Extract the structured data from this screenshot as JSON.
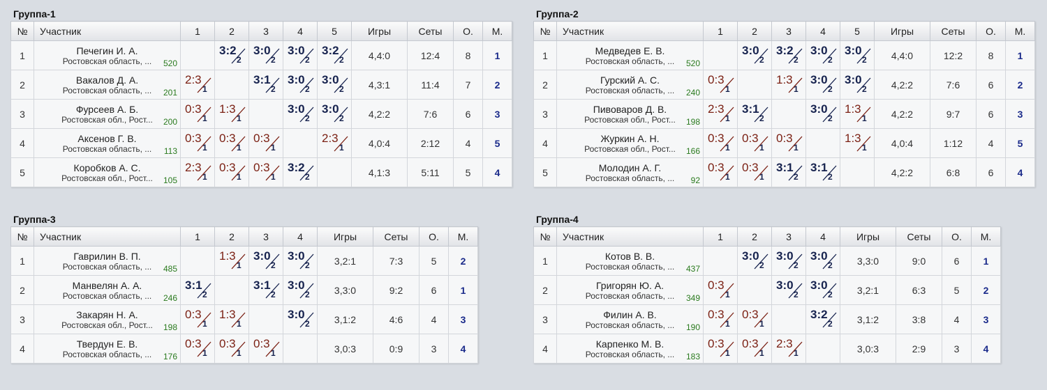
{
  "headers": {
    "num": "№",
    "name": "Участник",
    "games": "Игры",
    "sets": "Сеты",
    "points": "О.",
    "place": "М."
  },
  "groups": [
    {
      "title": "Группа-1",
      "players": [
        {
          "num": "1",
          "name": "Печегин И. А.",
          "region": "Ростовская область, ...",
          "rating": "520",
          "games": "4,4:0",
          "sets": "12:4",
          "points": "8",
          "place": "1",
          "results": [
            null,
            {
              "s": "3:2",
              "p": "2",
              "w": true
            },
            {
              "s": "3:0",
              "p": "2",
              "w": true
            },
            {
              "s": "3:0",
              "p": "2",
              "w": true
            },
            {
              "s": "3:2",
              "p": "2",
              "w": true
            }
          ]
        },
        {
          "num": "2",
          "name": "Вакалов Д. А.",
          "region": "Ростовская область, ...",
          "rating": "201",
          "games": "4,3:1",
          "sets": "11:4",
          "points": "7",
          "place": "2",
          "results": [
            {
              "s": "2:3",
              "p": "1",
              "w": false
            },
            null,
            {
              "s": "3:1",
              "p": "2",
              "w": true
            },
            {
              "s": "3:0",
              "p": "2",
              "w": true
            },
            {
              "s": "3:0",
              "p": "2",
              "w": true
            }
          ]
        },
        {
          "num": "3",
          "name": "Фурсеев А. Б.",
          "region": "Ростовская обл., Рост...",
          "rating": "200",
          "games": "4,2:2",
          "sets": "7:6",
          "points": "6",
          "place": "3",
          "results": [
            {
              "s": "0:3",
              "p": "1",
              "w": false
            },
            {
              "s": "1:3",
              "p": "1",
              "w": false
            },
            null,
            {
              "s": "3:0",
              "p": "2",
              "w": true
            },
            {
              "s": "3:0",
              "p": "2",
              "w": true
            }
          ]
        },
        {
          "num": "4",
          "name": "Аксенов Г. В.",
          "region": "Ростовская область, ...",
          "rating": "113",
          "games": "4,0:4",
          "sets": "2:12",
          "points": "4",
          "place": "5",
          "results": [
            {
              "s": "0:3",
              "p": "1",
              "w": false
            },
            {
              "s": "0:3",
              "p": "1",
              "w": false
            },
            {
              "s": "0:3",
              "p": "1",
              "w": false
            },
            null,
            {
              "s": "2:3",
              "p": "1",
              "w": false
            }
          ]
        },
        {
          "num": "5",
          "name": "Коробков А. С.",
          "region": "Ростовская обл., Рост...",
          "rating": "105",
          "games": "4,1:3",
          "sets": "5:11",
          "points": "5",
          "place": "4",
          "results": [
            {
              "s": "2:3",
              "p": "1",
              "w": false
            },
            {
              "s": "0:3",
              "p": "1",
              "w": false
            },
            {
              "s": "0:3",
              "p": "1",
              "w": false
            },
            {
              "s": "3:2",
              "p": "2",
              "w": true
            },
            null
          ]
        }
      ]
    },
    {
      "title": "Группа-2",
      "players": [
        {
          "num": "1",
          "name": "Медведев Е. В.",
          "region": "Ростовская область, ...",
          "rating": "520",
          "games": "4,4:0",
          "sets": "12:2",
          "points": "8",
          "place": "1",
          "results": [
            null,
            {
              "s": "3:0",
              "p": "2",
              "w": true
            },
            {
              "s": "3:2",
              "p": "2",
              "w": true
            },
            {
              "s": "3:0",
              "p": "2",
              "w": true
            },
            {
              "s": "3:0",
              "p": "2",
              "w": true
            }
          ]
        },
        {
          "num": "2",
          "name": "Гурский А. С.",
          "region": "Ростовская область, ...",
          "rating": "240",
          "games": "4,2:2",
          "sets": "7:6",
          "points": "6",
          "place": "2",
          "results": [
            {
              "s": "0:3",
              "p": "1",
              "w": false
            },
            null,
            {
              "s": "1:3",
              "p": "1",
              "w": false
            },
            {
              "s": "3:0",
              "p": "2",
              "w": true
            },
            {
              "s": "3:0",
              "p": "2",
              "w": true
            }
          ]
        },
        {
          "num": "3",
          "name": "Пивоваров Д. В.",
          "region": "Ростовская обл., Рост...",
          "rating": "198",
          "games": "4,2:2",
          "sets": "9:7",
          "points": "6",
          "place": "3",
          "results": [
            {
              "s": "2:3",
              "p": "1",
              "w": false
            },
            {
              "s": "3:1",
              "p": "2",
              "w": true
            },
            null,
            {
              "s": "3:0",
              "p": "2",
              "w": true
            },
            {
              "s": "1:3",
              "p": "1",
              "w": false
            }
          ]
        },
        {
          "num": "4",
          "name": "Журкин А. Н.",
          "region": "Ростовская обл., Рост...",
          "rating": "166",
          "games": "4,0:4",
          "sets": "1:12",
          "points": "4",
          "place": "5",
          "results": [
            {
              "s": "0:3",
              "p": "1",
              "w": false
            },
            {
              "s": "0:3",
              "p": "1",
              "w": false
            },
            {
              "s": "0:3",
              "p": "1",
              "w": false
            },
            null,
            {
              "s": "1:3",
              "p": "1",
              "w": false
            }
          ]
        },
        {
          "num": "5",
          "name": "Молодин А. Г.",
          "region": "Ростовская область, ...",
          "rating": "92",
          "games": "4,2:2",
          "sets": "6:8",
          "points": "6",
          "place": "4",
          "results": [
            {
              "s": "0:3",
              "p": "1",
              "w": false
            },
            {
              "s": "0:3",
              "p": "1",
              "w": false
            },
            {
              "s": "3:1",
              "p": "2",
              "w": true
            },
            {
              "s": "3:1",
              "p": "2",
              "w": true
            },
            null
          ]
        }
      ]
    },
    {
      "title": "Группа-3",
      "players": [
        {
          "num": "1",
          "name": "Гаврилин В. П.",
          "region": "Ростовская область, ...",
          "rating": "485",
          "games": "3,2:1",
          "sets": "7:3",
          "points": "5",
          "place": "2",
          "results": [
            null,
            {
              "s": "1:3",
              "p": "1",
              "w": false
            },
            {
              "s": "3:0",
              "p": "2",
              "w": true
            },
            {
              "s": "3:0",
              "p": "2",
              "w": true
            }
          ]
        },
        {
          "num": "2",
          "name": "Манвелян А. А.",
          "region": "Ростовская область, ...",
          "rating": "246",
          "games": "3,3:0",
          "sets": "9:2",
          "points": "6",
          "place": "1",
          "results": [
            {
              "s": "3:1",
              "p": "2",
              "w": true
            },
            null,
            {
              "s": "3:1",
              "p": "2",
              "w": true
            },
            {
              "s": "3:0",
              "p": "2",
              "w": true
            }
          ]
        },
        {
          "num": "3",
          "name": "Закарян Н. А.",
          "region": "Ростовская обл., Рост...",
          "rating": "198",
          "games": "3,1:2",
          "sets": "4:6",
          "points": "4",
          "place": "3",
          "results": [
            {
              "s": "0:3",
              "p": "1",
              "w": false
            },
            {
              "s": "1:3",
              "p": "1",
              "w": false
            },
            null,
            {
              "s": "3:0",
              "p": "2",
              "w": true
            }
          ]
        },
        {
          "num": "4",
          "name": "Твердун Е. В.",
          "region": "Ростовская область, ...",
          "rating": "176",
          "games": "3,0:3",
          "sets": "0:9",
          "points": "3",
          "place": "4",
          "results": [
            {
              "s": "0:3",
              "p": "1",
              "w": false
            },
            {
              "s": "0:3",
              "p": "1",
              "w": false
            },
            {
              "s": "0:3",
              "p": "1",
              "w": false
            },
            null
          ]
        }
      ]
    },
    {
      "title": "Группа-4",
      "players": [
        {
          "num": "1",
          "name": "Котов В. В.",
          "region": "Ростовская область, ...",
          "rating": "437",
          "games": "3,3:0",
          "sets": "9:0",
          "points": "6",
          "place": "1",
          "results": [
            null,
            {
              "s": "3:0",
              "p": "2",
              "w": true
            },
            {
              "s": "3:0",
              "p": "2",
              "w": true
            },
            {
              "s": "3:0",
              "p": "2",
              "w": true
            }
          ]
        },
        {
          "num": "2",
          "name": "Григорян Ю. А.",
          "region": "Ростовская область, ...",
          "rating": "349",
          "games": "3,2:1",
          "sets": "6:3",
          "points": "5",
          "place": "2",
          "results": [
            {
              "s": "0:3",
              "p": "1",
              "w": false
            },
            null,
            {
              "s": "3:0",
              "p": "2",
              "w": true
            },
            {
              "s": "3:0",
              "p": "2",
              "w": true
            }
          ]
        },
        {
          "num": "3",
          "name": "Филин А. В.",
          "region": "Ростовская область, ...",
          "rating": "190",
          "games": "3,1:2",
          "sets": "3:8",
          "points": "4",
          "place": "3",
          "results": [
            {
              "s": "0:3",
              "p": "1",
              "w": false
            },
            {
              "s": "0:3",
              "p": "1",
              "w": false
            },
            null,
            {
              "s": "3:2",
              "p": "2",
              "w": true
            }
          ]
        },
        {
          "num": "4",
          "name": "Карпенко М. В.",
          "region": "Ростовская область, ...",
          "rating": "183",
          "games": "3,0:3",
          "sets": "2:9",
          "points": "3",
          "place": "4",
          "results": [
            {
              "s": "0:3",
              "p": "1",
              "w": false
            },
            {
              "s": "0:3",
              "p": "1",
              "w": false
            },
            {
              "s": "2:3",
              "p": "1",
              "w": false
            },
            null
          ]
        }
      ]
    }
  ]
}
